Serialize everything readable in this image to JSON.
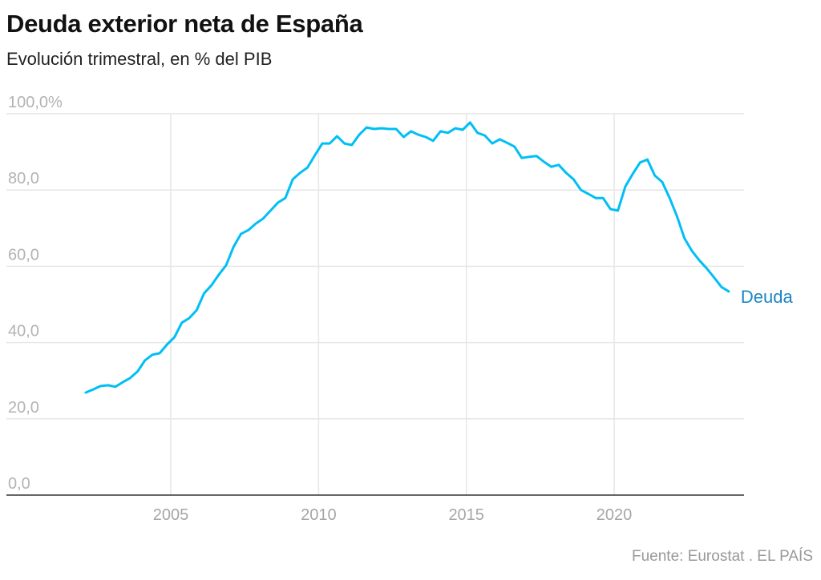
{
  "header": {
    "title": "Deuda exterior neta de España",
    "subtitle": "Evolución trimestral, en % del PIB"
  },
  "footer": {
    "source": "Fuente: Eurostat . EL PAÍS"
  },
  "colors": {
    "line": "#00bff5",
    "label": "#1a86c4",
    "grid": "#e6e6e6",
    "axis": "#333333"
  },
  "chart_data": {
    "type": "line",
    "title": "Deuda exterior neta de España",
    "subtitle": "Evolución trimestral, en % del PIB",
    "xlabel": "",
    "ylabel": "% del PIB",
    "ylim": [
      0,
      100
    ],
    "xlim": [
      2001.7,
      2026.0
    ],
    "yticks": [
      {
        "v": 0,
        "label": "0,0"
      },
      {
        "v": 20,
        "label": "20,0"
      },
      {
        "v": 40,
        "label": "40,0"
      },
      {
        "v": 60,
        "label": "60,0"
      },
      {
        "v": 80,
        "label": "80,0"
      },
      {
        "v": 100,
        "label": "100,0%"
      }
    ],
    "xticks": [
      {
        "v": 2005,
        "label": "2005"
      },
      {
        "v": 2010,
        "label": "2010"
      },
      {
        "v": 2015,
        "label": "2015"
      },
      {
        "v": 2020,
        "label": "2020"
      }
    ],
    "x_start": 2002.125,
    "x_step": 0.25,
    "series": [
      {
        "name": "Deuda",
        "values": [
          26.9,
          27.7,
          28.6,
          28.8,
          28.4,
          29.6,
          30.7,
          32.4,
          35.3,
          36.8,
          37.2,
          39.5,
          41.4,
          45.2,
          46.4,
          48.5,
          52.9,
          55.0,
          57.8,
          60.3,
          65.1,
          68.5,
          69.5,
          71.2,
          72.5,
          74.6,
          76.7,
          77.9,
          82.8,
          84.5,
          85.9,
          89.1,
          92.2,
          92.2,
          94.1,
          92.2,
          91.8,
          94.5,
          96.4,
          96.0,
          96.2,
          96.0,
          96.0,
          93.9,
          95.4,
          94.5,
          93.9,
          92.9,
          95.4,
          95.0,
          96.2,
          95.8,
          97.7,
          95.0,
          94.3,
          92.2,
          93.3,
          92.4,
          91.4,
          88.4,
          88.7,
          88.9,
          87.4,
          86.1,
          86.6,
          84.5,
          82.8,
          80.0,
          79.0,
          77.9,
          77.9,
          75.0,
          74.6,
          80.9,
          84.2,
          87.2,
          88.0,
          83.8,
          82.1,
          77.9,
          73.1,
          67.4,
          64.1,
          61.6,
          59.5,
          57.1,
          54.6,
          53.4
        ]
      }
    ]
  }
}
